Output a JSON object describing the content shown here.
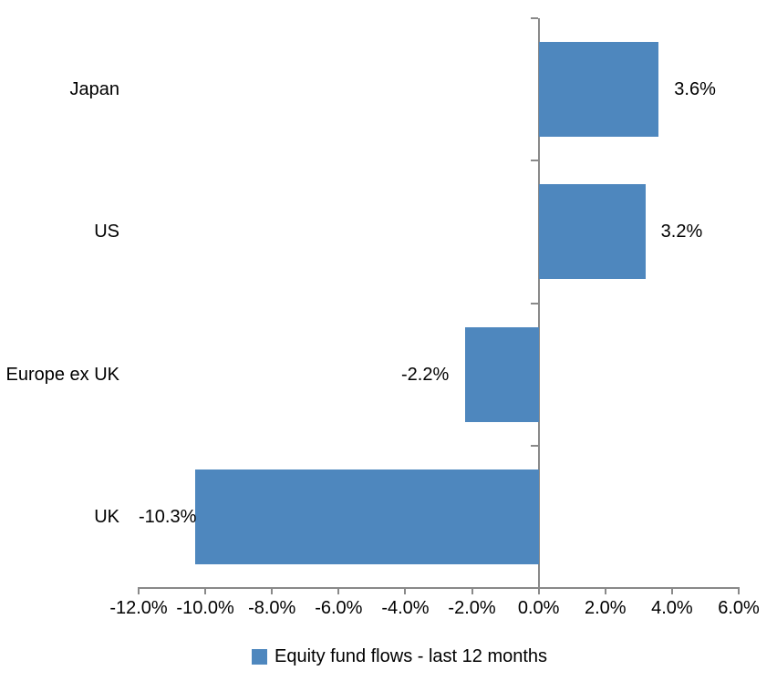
{
  "chart_data": {
    "type": "bar",
    "orientation": "horizontal",
    "title": "",
    "categories": [
      "Japan",
      "US",
      "Europe ex UK",
      "UK"
    ],
    "series": [
      {
        "name": "Equity fund flows - last 12 months",
        "values": [
          3.6,
          3.2,
          -2.2,
          -10.3
        ],
        "color": "#4E87BE"
      }
    ],
    "data_labels": [
      "3.6%",
      "3.2%",
      "-2.2%",
      "-10.3%"
    ],
    "x_tick_values": [
      -12,
      -10,
      -8,
      -6,
      -4,
      -2,
      0,
      2,
      4,
      6
    ],
    "x_tick_labels": [
      "-12.0%",
      "-10.0%",
      "-8.0%",
      "-6.0%",
      "-4.0%",
      "-2.0%",
      "0.0%",
      "2.0%",
      "4.0%",
      "6.0%"
    ],
    "xlim": [
      -12,
      6
    ],
    "xlabel": "",
    "ylabel": "",
    "grid": false,
    "legend_position": "bottom",
    "axis_color": "#898989",
    "text_color": "#000000",
    "background": "#FFFFFF"
  }
}
